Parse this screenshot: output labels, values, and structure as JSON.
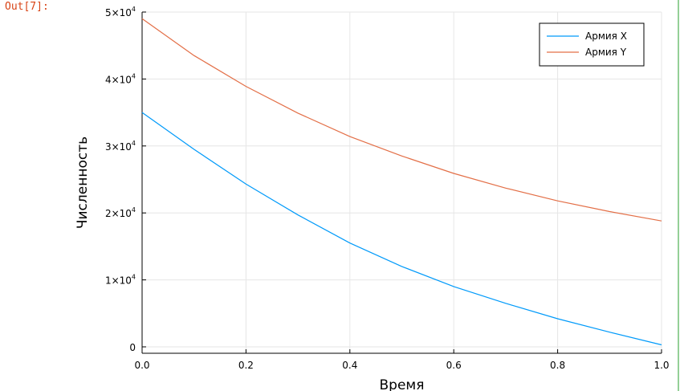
{
  "cell": {
    "prompt": "Out[7]:"
  },
  "chart_data": {
    "type": "line",
    "title": "",
    "xlabel": "Время",
    "ylabel": "Численность",
    "xlim": [
      0,
      1
    ],
    "ylim": [
      0,
      50000
    ],
    "grid": true,
    "legend_position": "top-right",
    "x_ticks": [
      {
        "value": 0,
        "label": "0.0"
      },
      {
        "value": 0.2,
        "label": "0.2"
      },
      {
        "value": 0.4,
        "label": "0.4"
      },
      {
        "value": 0.6,
        "label": "0.6"
      },
      {
        "value": 0.8,
        "label": "0.8"
      },
      {
        "value": 1.0,
        "label": "1.0"
      }
    ],
    "y_ticks": [
      {
        "value": 0,
        "mantissa": "0",
        "exp": ""
      },
      {
        "value": 10000,
        "mantissa": "1×10",
        "exp": "4"
      },
      {
        "value": 20000,
        "mantissa": "2×10",
        "exp": "4"
      },
      {
        "value": 30000,
        "mantissa": "3×10",
        "exp": "4"
      },
      {
        "value": 40000,
        "mantissa": "4×10",
        "exp": "4"
      },
      {
        "value": 50000,
        "mantissa": "5×10",
        "exp": "4"
      }
    ],
    "x": [
      0,
      0.1,
      0.2,
      0.3,
      0.4,
      0.5,
      0.6,
      0.7,
      0.8,
      0.9,
      1.0
    ],
    "series": [
      {
        "name": "Армия X",
        "color": "#009AFA",
        "values": [
          35000,
          29500,
          24300,
          19700,
          15500,
          12000,
          9000,
          6500,
          4200,
          2200,
          300
        ]
      },
      {
        "name": "Армия Y",
        "color": "#E36F47",
        "values": [
          49000,
          43500,
          38900,
          34900,
          31400,
          28500,
          25900,
          23700,
          21800,
          20200,
          18800
        ]
      }
    ]
  }
}
